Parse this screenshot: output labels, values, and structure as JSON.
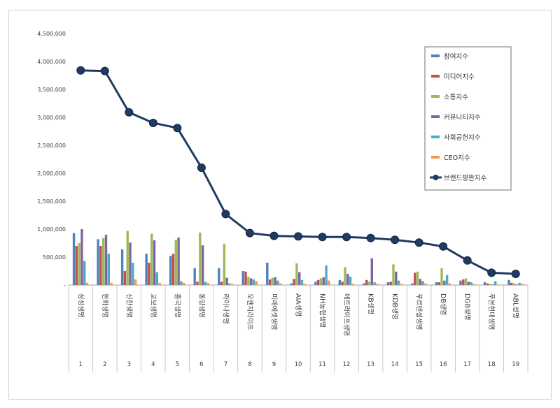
{
  "chart_data": {
    "type": "bar",
    "title": "",
    "xlabel": "",
    "ylabel": "",
    "ylim": [
      0,
      4500000
    ],
    "y_ticks": [
      "-",
      "500,000",
      "1,000,000",
      "1,500,000",
      "2,000,000",
      "2,500,000",
      "3,000,000",
      "3,500,000",
      "4,000,000",
      "4,500,000"
    ],
    "y_tick_values": [
      0,
      500000,
      1000000,
      1500000,
      2000000,
      2500000,
      3000000,
      3500000,
      4000000,
      4500000
    ],
    "grid": false,
    "legend_position": "top-right",
    "categories": [
      "삼성생명",
      "한화생명",
      "신한생명",
      "교보생명",
      "흥국생명",
      "동양생명",
      "라이나생명",
      "오렌지라이프",
      "미래에셋생명",
      "AIA생명",
      "NH농협생명",
      "메트라이프생명",
      "KB생명",
      "KDB생명",
      "푸르덴셜생명",
      "DB생명",
      "DGB생명",
      "푸본현대생명",
      "ABL생명"
    ],
    "ranks": [
      "1",
      "2",
      "3",
      "4",
      "5",
      "6",
      "7",
      "8",
      "9",
      "10",
      "11",
      "12",
      "13",
      "14",
      "15",
      "16",
      "17",
      "18",
      "19"
    ],
    "series": [
      {
        "name": "참여지수",
        "color": "#4f81bd",
        "values": [
          930000,
          820000,
          640000,
          560000,
          520000,
          300000,
          300000,
          250000,
          400000,
          30000,
          60000,
          90000,
          30000,
          50000,
          30000,
          50000,
          80000,
          50000,
          90000
        ]
      },
      {
        "name": "미디어지수",
        "color": "#c0504d",
        "values": [
          700000,
          700000,
          250000,
          400000,
          560000,
          60000,
          60000,
          240000,
          100000,
          110000,
          90000,
          60000,
          90000,
          60000,
          220000,
          50000,
          100000,
          30000,
          40000
        ]
      },
      {
        "name": "소통지수",
        "color": "#9bbb59",
        "values": [
          750000,
          840000,
          970000,
          920000,
          810000,
          940000,
          740000,
          150000,
          130000,
          390000,
          120000,
          320000,
          60000,
          370000,
          240000,
          300000,
          120000,
          20000,
          30000
        ]
      },
      {
        "name": "커뮤니티지수",
        "color": "#8064a2",
        "values": [
          1000000,
          900000,
          760000,
          800000,
          850000,
          710000,
          130000,
          120000,
          140000,
          230000,
          140000,
          200000,
          480000,
          240000,
          110000,
          80000,
          60000,
          10000,
          10000
        ]
      },
      {
        "name": "사회공헌지수",
        "color": "#4bacc6",
        "values": [
          430000,
          560000,
          400000,
          230000,
          70000,
          60000,
          30000,
          100000,
          80000,
          90000,
          350000,
          150000,
          50000,
          80000,
          70000,
          180000,
          50000,
          70000,
          40000
        ]
      },
      {
        "name": "CEO지수",
        "color": "#f79646",
        "values": [
          40000,
          40000,
          100000,
          40000,
          40000,
          40000,
          20000,
          70000,
          30000,
          20000,
          80000,
          20000,
          20000,
          20000,
          30000,
          30000,
          20000,
          10000,
          20000
        ]
      }
    ],
    "line_series": {
      "name": "브랜드평판지수",
      "color": "#1f3b64",
      "values": [
        3840000,
        3830000,
        3090000,
        2900000,
        2810000,
        2100000,
        1270000,
        930000,
        880000,
        870000,
        860000,
        860000,
        840000,
        810000,
        760000,
        690000,
        440000,
        220000,
        200000
      ]
    }
  }
}
